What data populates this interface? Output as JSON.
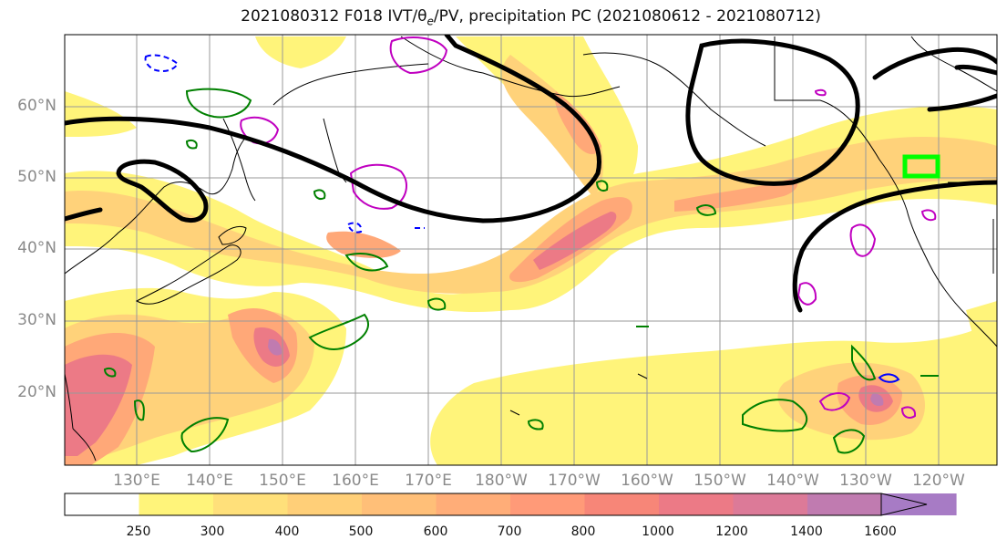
{
  "title": "2021080312 F018 IVT/θe/PV, precipitation PC (2021080612 - 2021080712)",
  "map": {
    "lat_labels": [
      "60°N",
      "50°N",
      "40°N",
      "30°N",
      "20°N"
    ],
    "lon_labels": [
      "130°E",
      "140°E",
      "150°E",
      "160°E",
      "170°E",
      "180°W",
      "170°W",
      "160°W",
      "150°W",
      "140°W",
      "130°W",
      "120°W"
    ],
    "colorbar": {
      "tick_labels": [
        "250",
        "300",
        "400",
        "500",
        "600",
        "700",
        "800",
        "1000",
        "1200",
        "1400",
        "1600"
      ],
      "colors": [
        "#ffffff",
        "#fff47a",
        "#ffe07a",
        "#ffcf78",
        "#ffbf78",
        "#ffad78",
        "#ff9a78",
        "#f78678",
        "#ec7a86",
        "#dc7a98",
        "#c07bb0",
        "#a77bc5"
      ]
    },
    "contour_colors": {
      "theta_e": "#000000",
      "pv_green": "#008000",
      "pv_magenta": "#c000c0",
      "pv_blue": "#0000ff",
      "target_box": "#00ff00"
    }
  }
}
